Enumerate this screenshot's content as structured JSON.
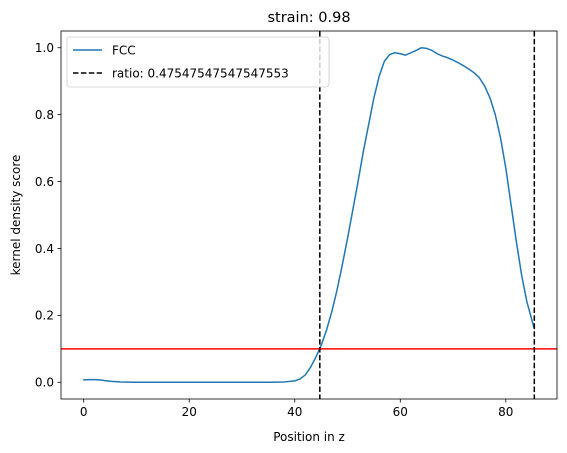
{
  "chart_data": {
    "type": "line",
    "title": "strain: 0.98",
    "xlabel": "Position in z",
    "ylabel": "kernel density score",
    "xlim": [
      -4.3,
      89.7
    ],
    "ylim": [
      -0.05,
      1.05
    ],
    "xticks": [
      0,
      20,
      40,
      60,
      80
    ],
    "yticks": [
      0.0,
      0.2,
      0.4,
      0.6,
      0.8,
      1.0
    ],
    "xtick_labels": [
      "0",
      "20",
      "40",
      "60",
      "80"
    ],
    "ytick_labels": [
      "0.0",
      "0.2",
      "0.4",
      "0.6",
      "0.8",
      "1.0"
    ],
    "grid": false,
    "legend_position": "top-left",
    "series": [
      {
        "name": "FCC",
        "color": "#1f77b4",
        "style": "solid",
        "x": [
          0,
          1,
          2,
          3,
          4,
          5,
          7,
          10,
          15,
          20,
          25,
          30,
          35,
          38,
          40,
          41,
          42,
          43,
          44,
          45,
          46,
          47,
          48,
          49,
          50,
          51,
          52,
          53,
          54,
          55,
          56,
          57,
          58,
          59,
          60,
          61,
          62,
          63,
          64,
          65,
          66,
          67,
          68,
          69,
          70,
          71,
          72,
          73,
          74,
          75,
          76,
          77,
          78,
          79,
          80,
          81,
          82,
          83,
          84,
          85.4
        ],
        "y": [
          0.007,
          0.008,
          0.008,
          0.007,
          0.005,
          0.003,
          0.001,
          0.0,
          0.0,
          0.0,
          0.0,
          0.0,
          0.0,
          0.001,
          0.004,
          0.01,
          0.022,
          0.045,
          0.075,
          0.11,
          0.155,
          0.21,
          0.275,
          0.35,
          0.43,
          0.515,
          0.6,
          0.69,
          0.77,
          0.85,
          0.915,
          0.96,
          0.98,
          0.985,
          0.982,
          0.978,
          0.985,
          0.992,
          1.0,
          0.998,
          0.992,
          0.982,
          0.975,
          0.97,
          0.963,
          0.955,
          0.946,
          0.936,
          0.925,
          0.91,
          0.885,
          0.85,
          0.8,
          0.73,
          0.64,
          0.53,
          0.42,
          0.32,
          0.24,
          0.16
        ]
      }
    ],
    "vlines": [
      {
        "name": "ratio: 0.47547547547547553",
        "x": 44.75,
        "color": "#000000",
        "style": "dashed",
        "in_legend": true
      },
      {
        "x": 85.4,
        "color": "#000000",
        "style": "dashed",
        "in_legend": false
      }
    ],
    "hlines": [
      {
        "y": 0.1,
        "color": "#ff0000",
        "style": "solid"
      }
    ]
  }
}
